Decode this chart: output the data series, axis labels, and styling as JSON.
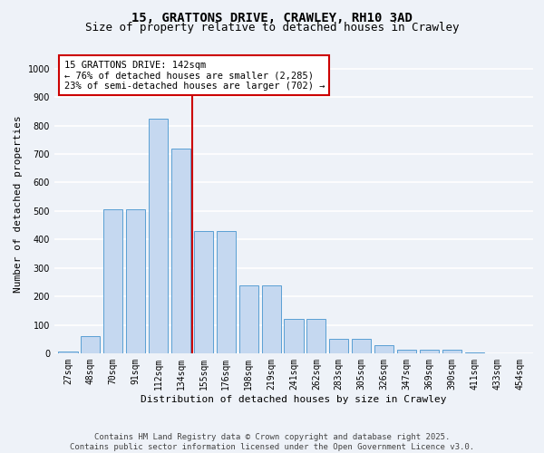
{
  "title_line1": "15, GRATTONS DRIVE, CRAWLEY, RH10 3AD",
  "title_line2": "Size of property relative to detached houses in Crawley",
  "xlabel": "Distribution of detached houses by size in Crawley",
  "ylabel": "Number of detached properties",
  "categories": [
    "27sqm",
    "48sqm",
    "70sqm",
    "91sqm",
    "112sqm",
    "134sqm",
    "155sqm",
    "176sqm",
    "198sqm",
    "219sqm",
    "241sqm",
    "262sqm",
    "283sqm",
    "305sqm",
    "326sqm",
    "347sqm",
    "369sqm",
    "390sqm",
    "411sqm",
    "433sqm",
    "454sqm"
  ],
  "values": [
    5,
    60,
    505,
    505,
    825,
    720,
    430,
    430,
    238,
    238,
    120,
    120,
    50,
    50,
    30,
    12,
    12,
    12,
    2,
    1,
    1
  ],
  "bar_color": "#c5d8f0",
  "bar_edge_color": "#5a9fd4",
  "background_color": "#eef2f8",
  "grid_color": "#ffffff",
  "vline_x": 5.5,
  "vline_color": "#cc0000",
  "annotation_text": "15 GRATTONS DRIVE: 142sqm\n← 76% of detached houses are smaller (2,285)\n23% of semi-detached houses are larger (702) →",
  "annotation_box_facecolor": "#ffffff",
  "annotation_box_edge": "#cc0000",
  "ylim": [
    0,
    1050
  ],
  "yticks": [
    0,
    100,
    200,
    300,
    400,
    500,
    600,
    700,
    800,
    900,
    1000
  ],
  "footer_text": "Contains HM Land Registry data © Crown copyright and database right 2025.\nContains public sector information licensed under the Open Government Licence v3.0.",
  "title_fontsize": 10,
  "subtitle_fontsize": 9,
  "axis_label_fontsize": 8,
  "tick_fontsize": 7,
  "annotation_fontsize": 7.5,
  "footer_fontsize": 6.5
}
